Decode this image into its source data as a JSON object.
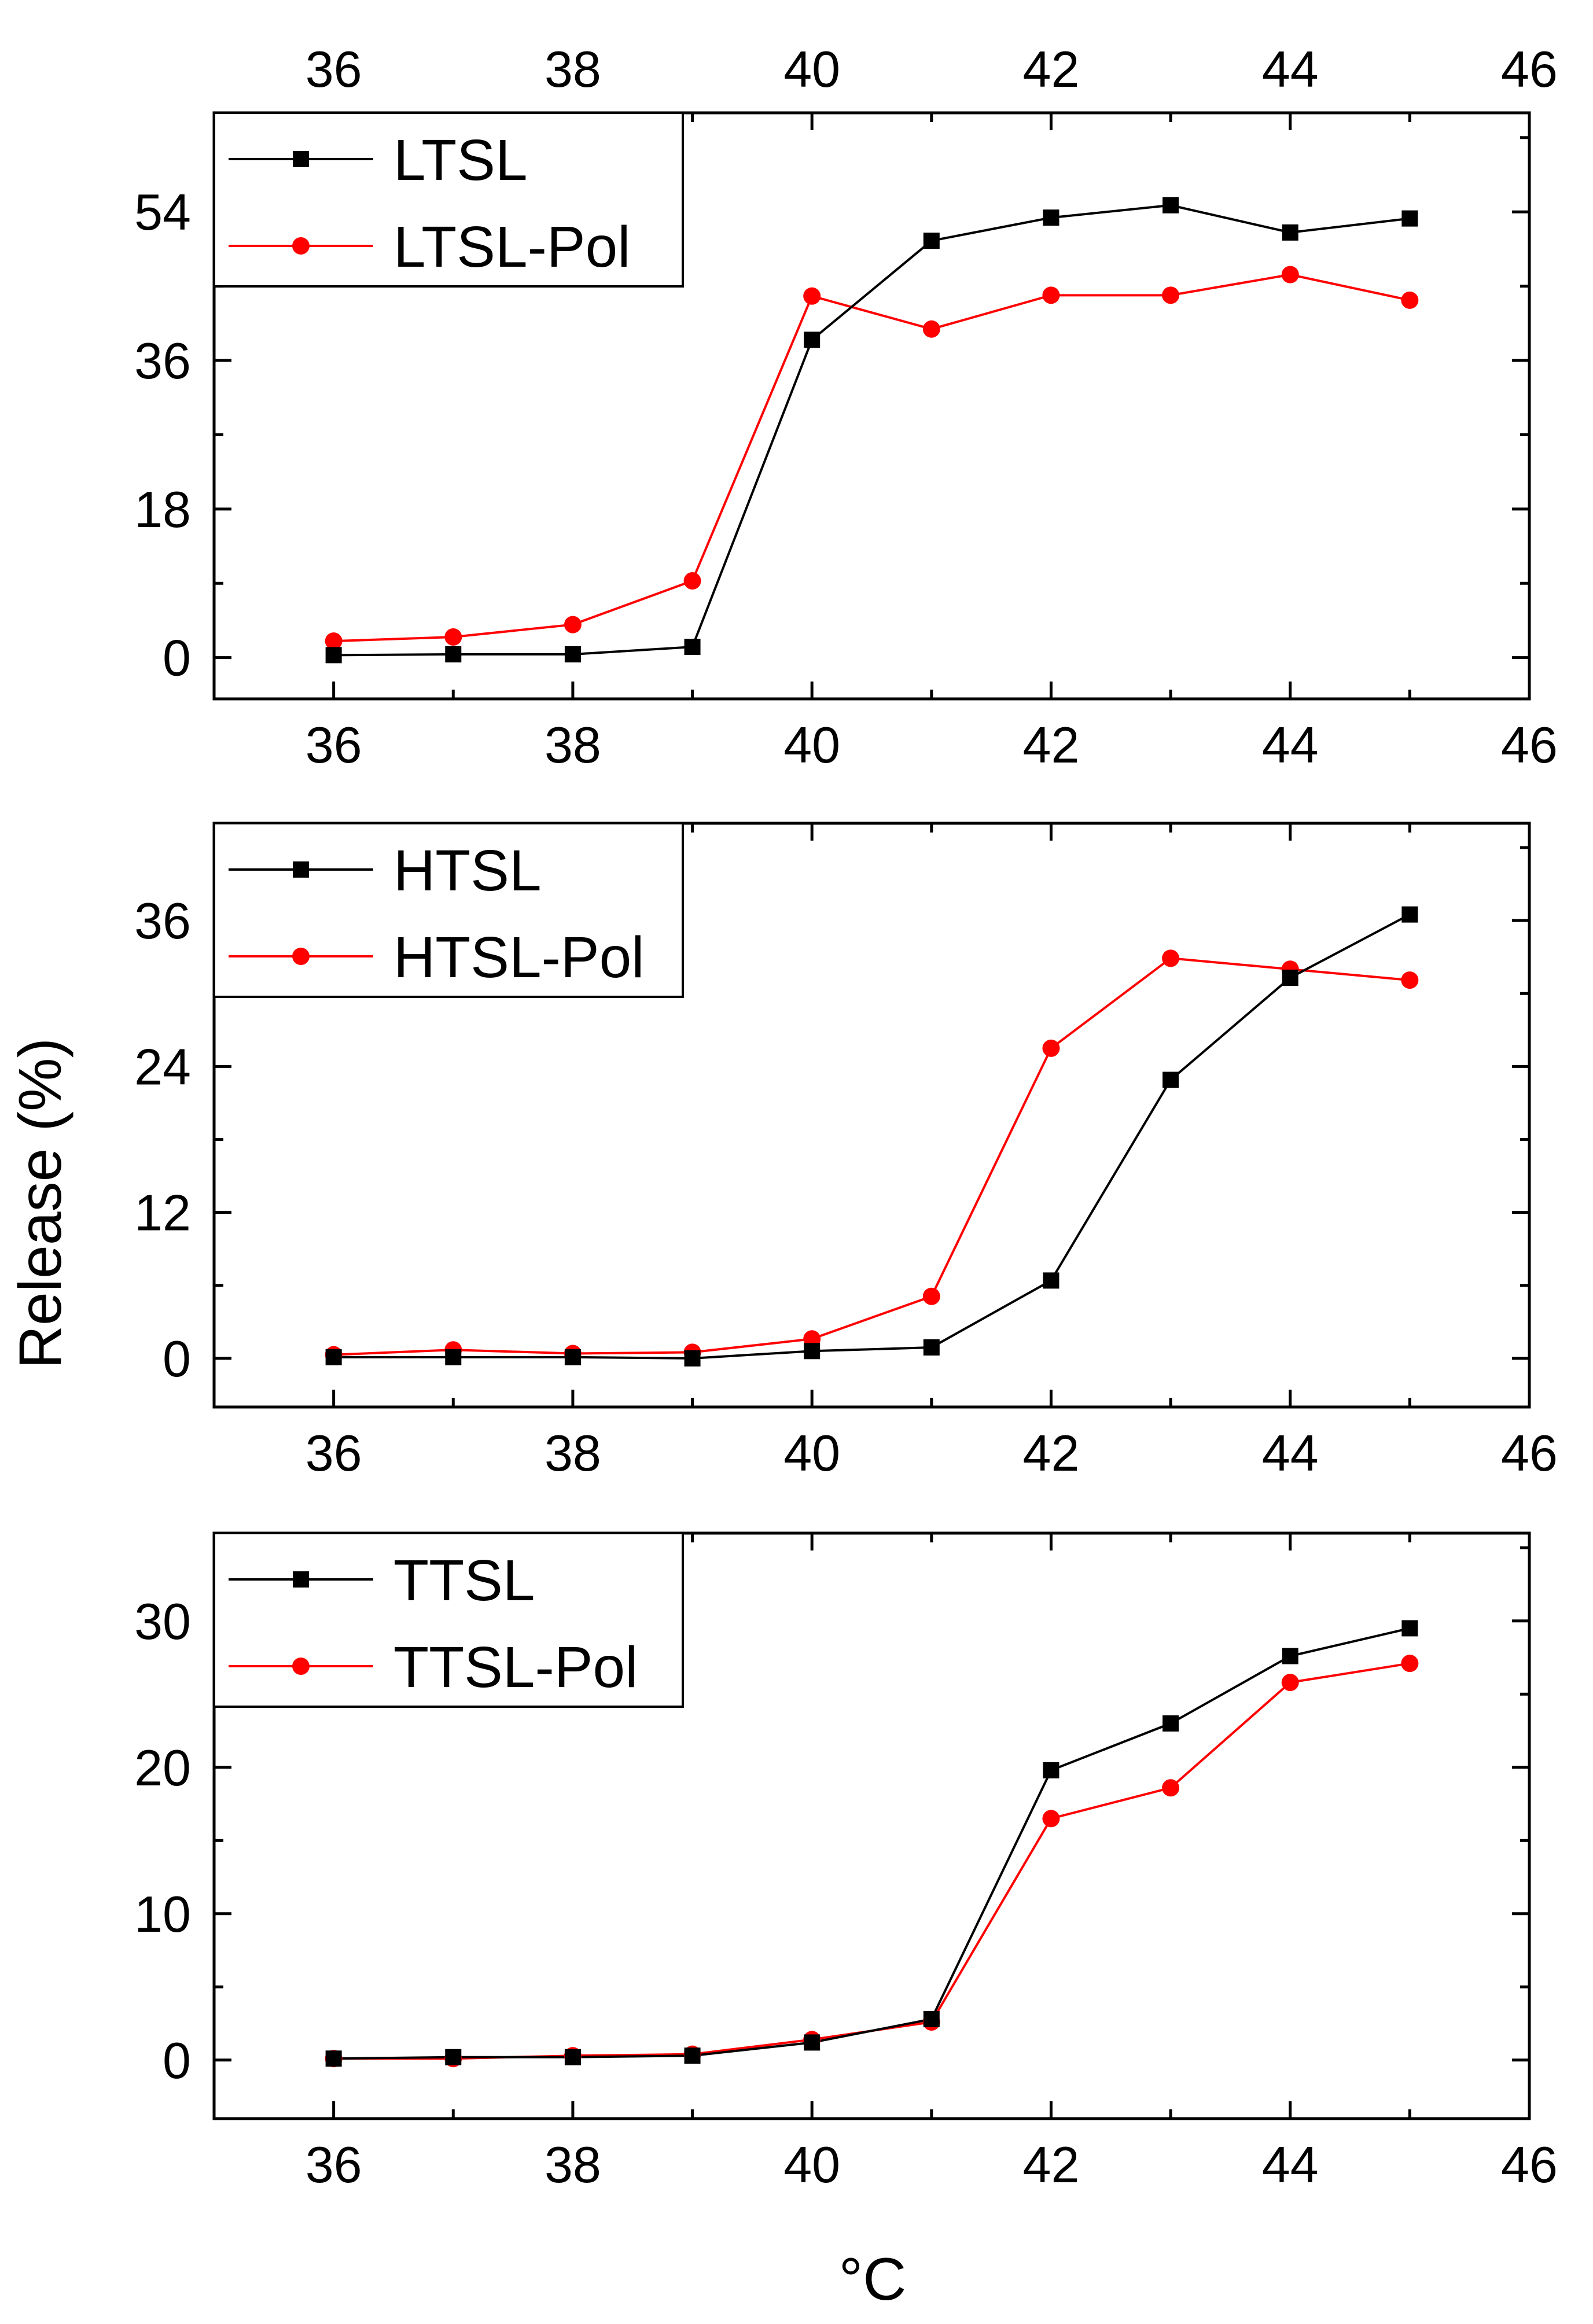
{
  "figure": {
    "ylabel": "Release (%)",
    "xlabel": "°C"
  },
  "colors": {
    "series_black": "#000000",
    "series_red": "#ff0000"
  },
  "chart_data": [
    {
      "type": "line",
      "panel": "top",
      "x": [
        36,
        37,
        38,
        39,
        40,
        41,
        42,
        43,
        44,
        45
      ],
      "xlim": [
        35,
        46
      ],
      "x_ticks": [
        "36",
        "38",
        "40",
        "42",
        "44",
        "46"
      ],
      "ylim": [
        -5,
        66
      ],
      "y_ticks": [
        "0",
        "18",
        "36",
        "54"
      ],
      "legend_position": "top-left",
      "series": [
        {
          "name": "LTSL",
          "marker": "square",
          "color": "#000000",
          "values": [
            0.3,
            0.4,
            0.4,
            1.3,
            38.5,
            50.5,
            53.3,
            54.8,
            51.5,
            53.2
          ]
        },
        {
          "name": "LTSL-Pol",
          "marker": "circle",
          "color": "#ff0000",
          "values": [
            2.0,
            2.5,
            4.0,
            9.3,
            43.8,
            39.8,
            43.9,
            43.9,
            46.4,
            43.3
          ]
        }
      ]
    },
    {
      "type": "line",
      "panel": "middle",
      "x": [
        36,
        37,
        38,
        39,
        40,
        41,
        42,
        43,
        44,
        45
      ],
      "xlim": [
        35,
        46
      ],
      "x_ticks": [
        "36",
        "38",
        "40",
        "42",
        "44",
        "46"
      ],
      "ylim": [
        -4,
        44
      ],
      "y_ticks": [
        "0",
        "12",
        "24",
        "36"
      ],
      "legend_position": "top-left",
      "series": [
        {
          "name": "HTSL",
          "marker": "square",
          "color": "#000000",
          "values": [
            0.1,
            0.1,
            0.1,
            0.0,
            0.6,
            0.9,
            6.4,
            22.9,
            31.3,
            36.5
          ]
        },
        {
          "name": "HTSL-Pol",
          "marker": "circle",
          "color": "#ff0000",
          "values": [
            0.3,
            0.7,
            0.4,
            0.5,
            1.6,
            5.1,
            25.5,
            32.9,
            32.0,
            31.1
          ]
        }
      ]
    },
    {
      "type": "line",
      "panel": "bottom",
      "x": [
        36,
        37,
        38,
        39,
        40,
        41,
        42,
        43,
        44,
        45
      ],
      "xlim": [
        35,
        46
      ],
      "x_ticks": [
        "36",
        "38",
        "40",
        "42",
        "44",
        "46"
      ],
      "ylim": [
        -4,
        36
      ],
      "y_ticks": [
        "0",
        "10",
        "20",
        "30"
      ],
      "legend_position": "top-left",
      "series": [
        {
          "name": "TTSL",
          "marker": "square",
          "color": "#000000",
          "values": [
            0.1,
            0.2,
            0.2,
            0.3,
            1.2,
            2.8,
            19.8,
            23.0,
            27.6,
            29.5
          ]
        },
        {
          "name": "TTSL-Pol",
          "marker": "circle",
          "color": "#ff0000",
          "values": [
            0.1,
            0.1,
            0.3,
            0.4,
            1.4,
            2.6,
            16.5,
            18.6,
            25.8,
            27.1
          ]
        }
      ]
    }
  ]
}
